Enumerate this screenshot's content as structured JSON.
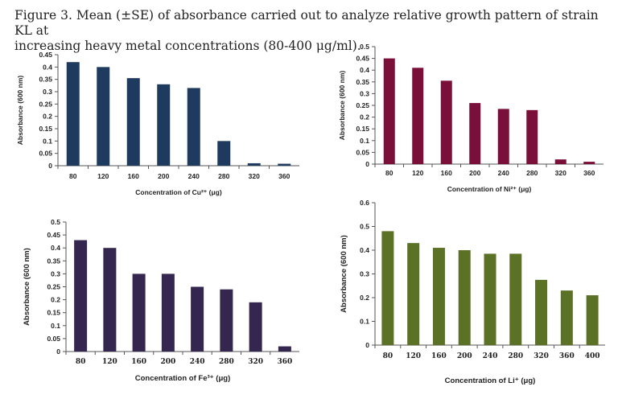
{
  "caption": {
    "line1": "Figure 3.  Mean (±SE) of absorbance carried out to analyze relative growth pattern of strain KL at",
    "line2": "increasing heavy metal concentrations (80-400 μg/ml)."
  },
  "chart_data": [
    {
      "id": "cu",
      "type": "bar",
      "categories": [
        "80",
        "120",
        "160",
        "200",
        "240",
        "280",
        "320",
        "360"
      ],
      "values": [
        0.42,
        0.4,
        0.355,
        0.33,
        0.315,
        0.1,
        0.01,
        0.008
      ],
      "ylim": [
        0,
        0.45
      ],
      "yticks": [
        "0",
        "0.05",
        "0.1",
        "0.15",
        "0.2",
        "0.25",
        "0.3",
        "0.35",
        "0.4",
        "0.45"
      ],
      "ylabel": "Absorbance (600 nm)",
      "xlabel": "Concentration of Cu²⁺ (μg)",
      "color": "#1f3a5f",
      "grid": false
    },
    {
      "id": "ni",
      "type": "bar",
      "categories": [
        "80",
        "120",
        "160",
        "200",
        "240",
        "280",
        "320",
        "360"
      ],
      "values": [
        0.45,
        0.41,
        0.355,
        0.26,
        0.235,
        0.23,
        0.02,
        0.01
      ],
      "ylim": [
        0,
        0.5
      ],
      "yticks": [
        "0",
        "0.05",
        "0.1",
        "0.15",
        "0.2",
        "0.25",
        "0.3",
        "0.35",
        "0.4",
        "0.45",
        "0.5"
      ],
      "ylabel": "Absorbance (600 nm)",
      "xlabel": "Concentration of Ni²⁺ (μg)",
      "color": "#7a0f3a",
      "grid": false
    },
    {
      "id": "fe",
      "type": "bar",
      "categories": [
        "80",
        "120",
        "160",
        "200",
        "240",
        "280",
        "320",
        "360"
      ],
      "values": [
        0.43,
        0.4,
        0.3,
        0.3,
        0.25,
        0.24,
        0.19,
        0.02
      ],
      "ylim": [
        0,
        0.5
      ],
      "yticks": [
        "0",
        "0.05",
        "0.1",
        "0.15",
        "0.2",
        "0.25",
        "0.3",
        "0.35",
        "0.4",
        "0.45",
        "0.5"
      ],
      "ylabel": "Absorbance (600 nm)",
      "xlabel": "Concentration of Fe³⁺ (μg)",
      "color": "#35264f",
      "grid": false
    },
    {
      "id": "li",
      "type": "bar",
      "categories": [
        "80",
        "120",
        "160",
        "200",
        "240",
        "280",
        "320",
        "360",
        "400"
      ],
      "values": [
        0.48,
        0.43,
        0.41,
        0.4,
        0.385,
        0.385,
        0.275,
        0.23,
        0.21
      ],
      "ylim": [
        0,
        0.6
      ],
      "yticks": [
        "0",
        "0.1",
        "0.2",
        "0.3",
        "0.4",
        "0.5",
        "0.6"
      ],
      "ylabel": "Absorbance (600 nm)",
      "xlabel": "Concentration of Li⁺ (μg)",
      "color": "#5a7126",
      "grid": false
    }
  ]
}
